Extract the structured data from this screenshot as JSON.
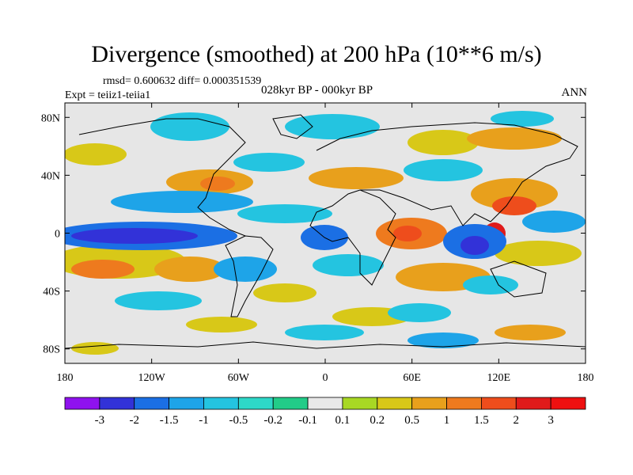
{
  "title": "Divergence (smoothed) at 200 hPa (10**6 m/s)",
  "stats": "rmsd= 0.600632 diff= 0.000351539",
  "experiment": "Expt = teiiz1-teiia1",
  "period": "028kyr BP - 000kyr BP",
  "season": "ANN",
  "map": {
    "x_ticks": [
      {
        "lon": -180,
        "label": "180"
      },
      {
        "lon": -120,
        "label": "120W"
      },
      {
        "lon": -60,
        "label": "60W"
      },
      {
        "lon": 0,
        "label": "0"
      },
      {
        "lon": 60,
        "label": "60E"
      },
      {
        "lon": 120,
        "label": "120E"
      },
      {
        "lon": 180,
        "label": "180"
      }
    ],
    "y_ticks": [
      {
        "lat": 80,
        "label": "80N"
      },
      {
        "lat": 40,
        "label": "40N"
      },
      {
        "lat": 0,
        "label": "0"
      },
      {
        "lat": -40,
        "label": "40S"
      },
      {
        "lat": -80,
        "label": "80S"
      }
    ],
    "background_color": "#e6e6e6"
  },
  "colorbar": {
    "labels": [
      "-3",
      "-2",
      "-1.5",
      "-1",
      "-0.5",
      "-0.2",
      "-0.1",
      "0.1",
      "0.2",
      "0.5",
      "1",
      "1.5",
      "2",
      "3"
    ],
    "colors": [
      "#8f12ee",
      "#3232d8",
      "#1b6fe4",
      "#1ea4e8",
      "#24c4e0",
      "#2ed8c8",
      "#22cc88",
      "#e8e8e8",
      "#a8d824",
      "#d8c818",
      "#e8a01c",
      "#ee7a1e",
      "#ee4d1c",
      "#e01a1a",
      "#ee1010"
    ]
  }
}
